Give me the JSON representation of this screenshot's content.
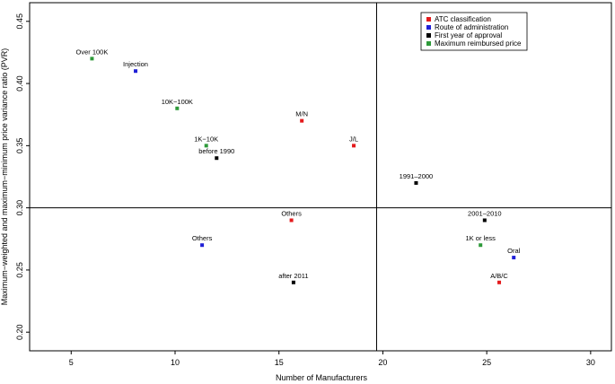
{
  "chart_data": {
    "type": "scatter",
    "title": "",
    "xlabel": "Number of Manufacturers",
    "ylabel": "Maximum−weighted and maximum−minimum price variance ratio (PVR)",
    "xlim": [
      3,
      31
    ],
    "ylim": [
      0.185,
      0.465
    ],
    "xticks": [
      5,
      10,
      15,
      20,
      25,
      30
    ],
    "yticks": [
      0.2,
      0.25,
      0.3,
      0.35,
      0.4,
      0.45
    ],
    "grid": false,
    "reference_lines": {
      "vertical_x": 19.7,
      "horizontal_y": 0.3
    },
    "legend_position": "top-right",
    "series": [
      {
        "name": "ATC classification",
        "color": "#e41a1c",
        "points": [
          {
            "label": "M/N",
            "x": 16.1,
            "y": 0.37
          },
          {
            "label": "J/L",
            "x": 18.6,
            "y": 0.35
          },
          {
            "label": "Others",
            "x": 15.6,
            "y": 0.29
          },
          {
            "label": "A/B/C",
            "x": 25.6,
            "y": 0.24
          }
        ]
      },
      {
        "name": "Route of administration",
        "color": "#1f1fd6",
        "points": [
          {
            "label": "Injection",
            "x": 8.1,
            "y": 0.41
          },
          {
            "label": "Others",
            "x": 11.3,
            "y": 0.27
          },
          {
            "label": "Oral",
            "x": 26.3,
            "y": 0.26
          }
        ]
      },
      {
        "name": "First year of approval",
        "color": "#000000",
        "points": [
          {
            "label": "before 1990",
            "x": 12.0,
            "y": 0.34
          },
          {
            "label": "1991–2000",
            "x": 21.6,
            "y": 0.32
          },
          {
            "label": "2001–2010",
            "x": 24.9,
            "y": 0.29
          },
          {
            "label": "after 2011",
            "x": 15.7,
            "y": 0.24
          }
        ]
      },
      {
        "name": "Maximum reimbursed price",
        "color": "#2e9a3a",
        "points": [
          {
            "label": "Over 100K",
            "x": 6.0,
            "y": 0.42
          },
          {
            "label": "10K−100K",
            "x": 10.1,
            "y": 0.38
          },
          {
            "label": "1K−10K",
            "x": 11.5,
            "y": 0.35
          },
          {
            "label": "1K or less",
            "x": 24.7,
            "y": 0.27
          }
        ]
      }
    ]
  }
}
